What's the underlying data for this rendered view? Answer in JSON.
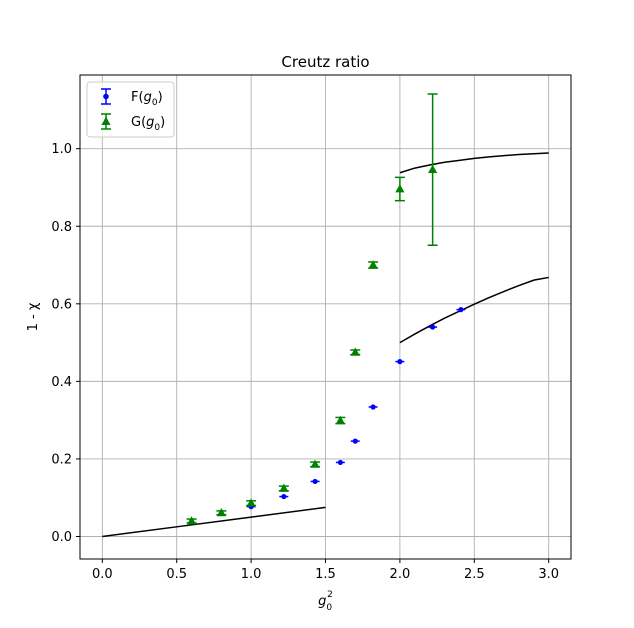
{
  "chart_data": {
    "type": "scatter",
    "title": "Creutz ratio",
    "xlabel": {
      "base": "g",
      "sub": "0",
      "sup": "2"
    },
    "ylabel": "1 - χ",
    "xlim": [
      -0.15,
      3.15
    ],
    "ylim": [
      -0.058,
      1.19
    ],
    "x_ticks": [
      0.0,
      0.5,
      1.0,
      1.5,
      2.0,
      2.5,
      3.0
    ],
    "x_tick_labels": [
      "0.0",
      "0.5",
      "1.0",
      "1.5",
      "2.0",
      "2.5",
      "3.0"
    ],
    "y_ticks": [
      0.0,
      0.2,
      0.4,
      0.6,
      0.8,
      1.0
    ],
    "y_tick_labels": [
      "0.0",
      "0.2",
      "0.4",
      "0.6",
      "0.8",
      "1.0"
    ],
    "grid": true,
    "legend_position": "upper-left",
    "series": [
      {
        "name": "F(g0)",
        "legend_base": "F(",
        "legend_var": "g",
        "legend_sub": "0",
        "legend_close": ")",
        "color": "#0000ff",
        "marker": "circle",
        "points": [
          {
            "x": 1.0,
            "y": 0.077,
            "xerr": 0.03,
            "yerr": 0.0
          },
          {
            "x": 1.22,
            "y": 0.103,
            "xerr": 0.03,
            "yerr": 0.0
          },
          {
            "x": 1.43,
            "y": 0.142,
            "xerr": 0.03,
            "yerr": 0.0
          },
          {
            "x": 1.6,
            "y": 0.191,
            "xerr": 0.03,
            "yerr": 0.0
          },
          {
            "x": 1.7,
            "y": 0.246,
            "xerr": 0.03,
            "yerr": 0.0
          },
          {
            "x": 1.82,
            "y": 0.334,
            "xerr": 0.03,
            "yerr": 0.0
          },
          {
            "x": 2.0,
            "y": 0.451,
            "xerr": 0.03,
            "yerr": 0.0
          },
          {
            "x": 2.22,
            "y": 0.54,
            "xerr": 0.03,
            "yerr": 0.0
          },
          {
            "x": 2.41,
            "y": 0.585,
            "xerr": 0.03,
            "yerr": 0.0
          }
        ]
      },
      {
        "name": "G(g0)",
        "legend_base": "G(",
        "legend_var": "g",
        "legend_sub": "0",
        "legend_close": ")",
        "color": "#008000",
        "marker": "triangle",
        "points": [
          {
            "x": 0.6,
            "y": 0.04,
            "yerr": 0.005
          },
          {
            "x": 0.8,
            "y": 0.061,
            "yerr": 0.005
          },
          {
            "x": 1.0,
            "y": 0.086,
            "yerr": 0.006
          },
          {
            "x": 1.22,
            "y": 0.124,
            "yerr": 0.006
          },
          {
            "x": 1.43,
            "y": 0.186,
            "yerr": 0.006
          },
          {
            "x": 1.6,
            "y": 0.299,
            "yerr": 0.008
          },
          {
            "x": 1.7,
            "y": 0.475,
            "yerr": 0.006
          },
          {
            "x": 1.82,
            "y": 0.7,
            "yerr": 0.008
          },
          {
            "x": 2.0,
            "y": 0.896,
            "yerr": 0.03
          },
          {
            "x": 2.22,
            "y": 0.946,
            "yerr": 0.195
          }
        ]
      }
    ],
    "curves": [
      {
        "color": "#000000",
        "points": [
          [
            0.0,
            0.0
          ],
          [
            0.5,
            0.025
          ],
          [
            1.0,
            0.05
          ],
          [
            1.5,
            0.075
          ]
        ]
      },
      {
        "color": "#000000",
        "points": [
          [
            2.0,
            0.5
          ],
          [
            2.1,
            0.522
          ],
          [
            2.2,
            0.543
          ],
          [
            2.3,
            0.563
          ],
          [
            2.4,
            0.581
          ],
          [
            2.5,
            0.599
          ],
          [
            2.6,
            0.616
          ],
          [
            2.7,
            0.632
          ],
          [
            2.8,
            0.647
          ],
          [
            2.9,
            0.661
          ],
          [
            3.0,
            0.668
          ]
        ]
      },
      {
        "color": "#000000",
        "points": [
          [
            2.0,
            0.938
          ],
          [
            2.1,
            0.95
          ],
          [
            2.2,
            0.958
          ],
          [
            2.3,
            0.965
          ],
          [
            2.4,
            0.97
          ],
          [
            2.5,
            0.975
          ],
          [
            2.6,
            0.979
          ],
          [
            2.7,
            0.982
          ],
          [
            2.8,
            0.985
          ],
          [
            2.9,
            0.987
          ],
          [
            3.0,
            0.989
          ]
        ]
      }
    ]
  }
}
